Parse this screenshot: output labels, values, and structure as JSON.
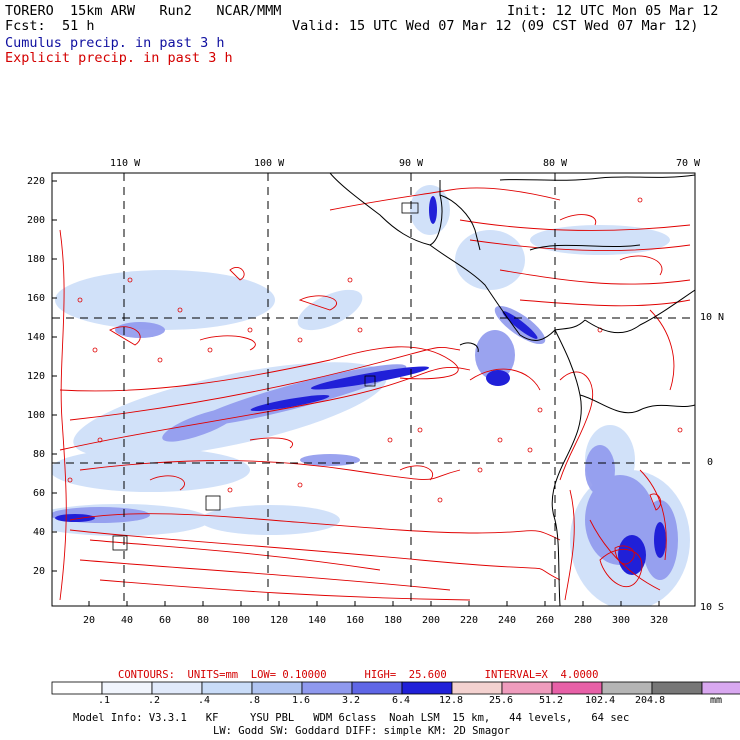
{
  "header": {
    "model": "TORERO  15km ARW   Run2   NCAR/MMM",
    "init": "Init: 12 UTC Mon 05 Mar 12",
    "fcst_label": "Fcst:",
    "fcst_value": "51 h",
    "valid": "Valid: 15 UTC Wed 07 Mar 12 (09 CST Wed 07 Mar 12)",
    "legend_cumulus": "Cumulus precip. in past 3 h",
    "legend_explicit": "Explicit precip. in past 3 h"
  },
  "map": {
    "lon_labels": [
      "110 W",
      "100 W",
      "90 W",
      "80 W",
      "70 W"
    ],
    "lat_labels": [
      "10 N",
      "0",
      "10 S"
    ],
    "y_ticks": [
      "220",
      "200",
      "180",
      "160",
      "140",
      "120",
      "100",
      "80",
      "60",
      "40",
      "20"
    ],
    "x_ticks": [
      "20",
      "40",
      "60",
      "80",
      "100",
      "120",
      "140",
      "160",
      "180",
      "200",
      "220",
      "240",
      "260",
      "280",
      "300",
      "320"
    ]
  },
  "contours_line": "CONTOURS:  UNITS=mm  LOW= 0.10000      HIGH=  25.600      INTERVAL=X  4.0000",
  "colorbar": {
    "colors": [
      "#ffffff",
      "#f1f5fd",
      "#e1eafb",
      "#c9dcf8",
      "#b0c4f1",
      "#8f99ee",
      "#5f66e6",
      "#2020d8",
      "#f4d2d0",
      "#ef9cbd",
      "#e760a7",
      "#b5b5b5",
      "#777777",
      "#d9a8f0"
    ],
    "labels": [
      ".1",
      ".2",
      ".4",
      ".8",
      "1.6",
      "3.2",
      "6.4",
      "12.8",
      "25.6",
      "51.2",
      "102.4",
      "204.8"
    ],
    "unit": "mm"
  },
  "model_info": {
    "line1": "Model Info: V3.3.1   KF     YSU PBL   WDM 6class  Noah LSM  15 km,   44 levels,   64 sec",
    "line2": "LW: Godd SW: Goddard DIFF: simple KM: 2D Smagor"
  }
}
